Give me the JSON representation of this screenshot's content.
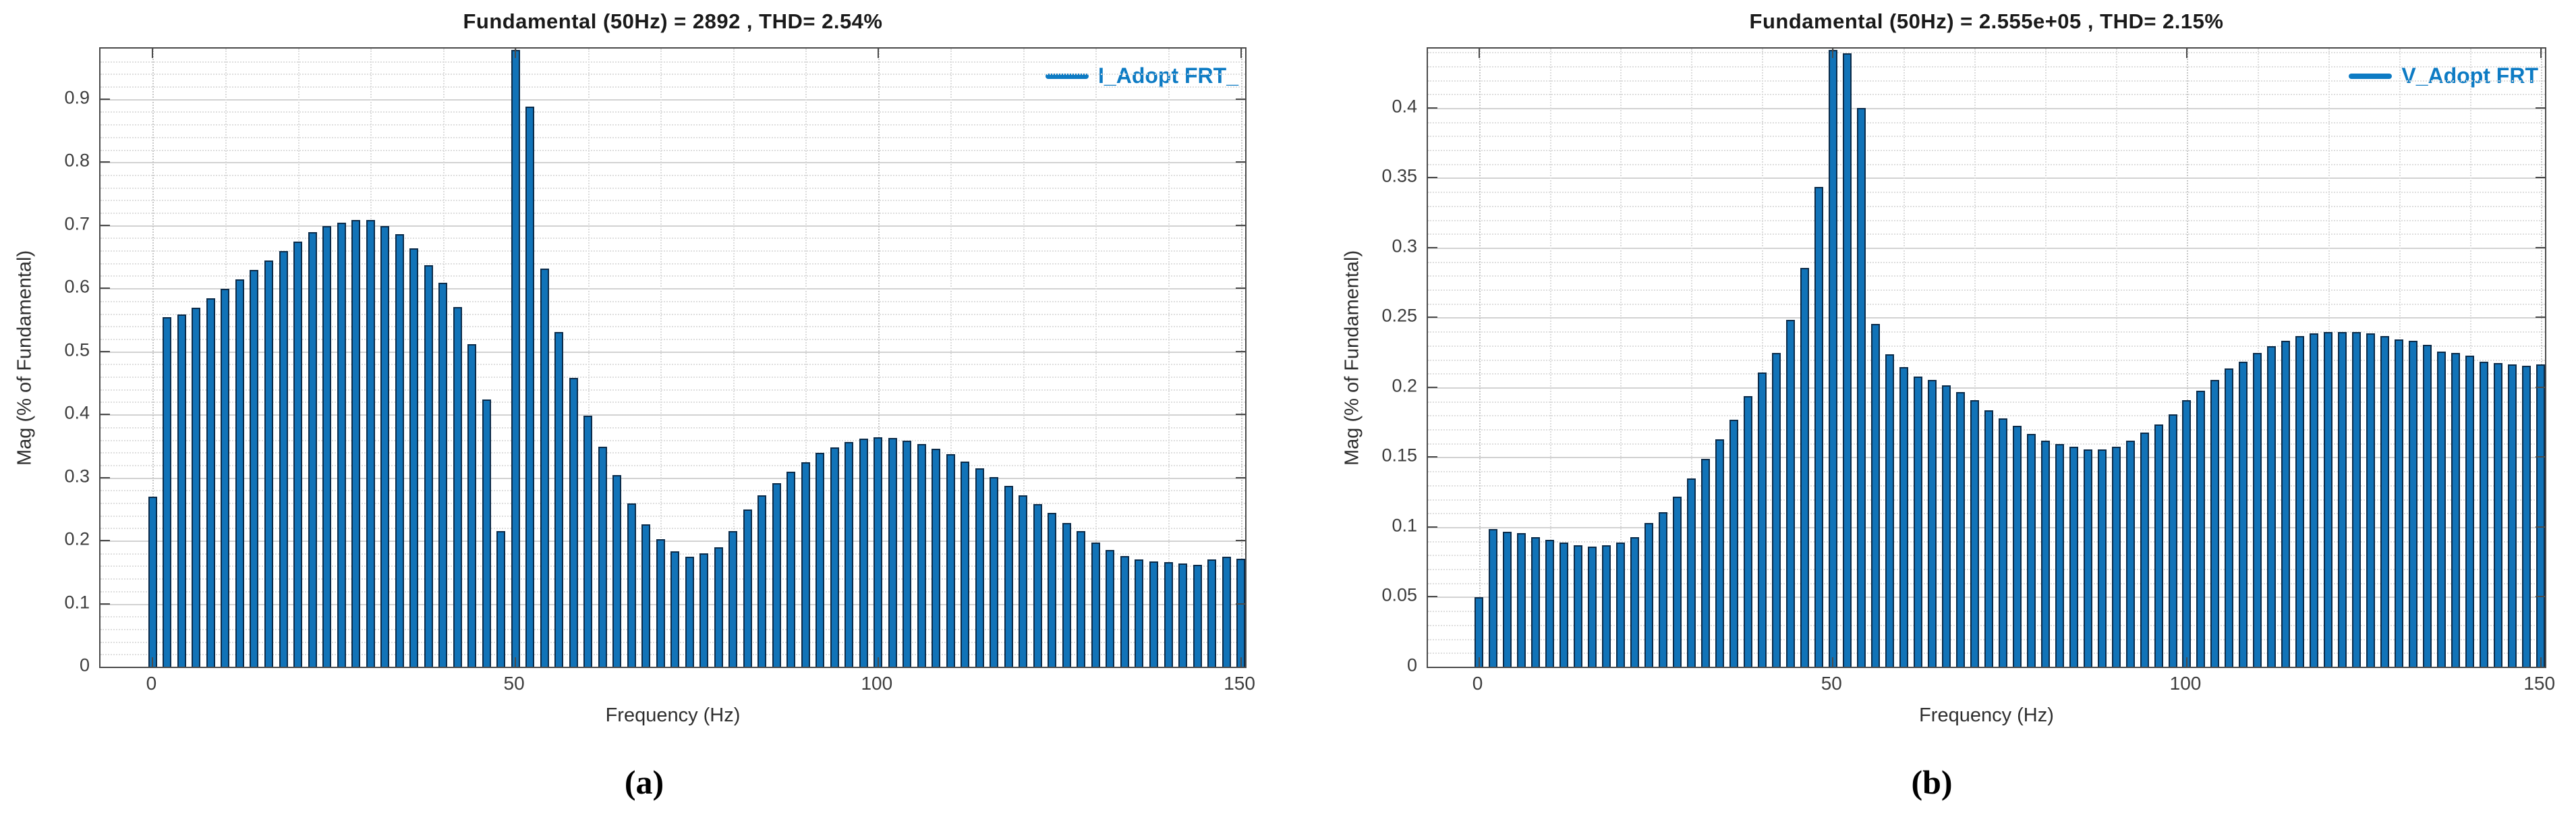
{
  "colors": {
    "bar_fill": "#1173b8",
    "bar_edge": "#0b2b49",
    "accent_blue": "#0d7bc4",
    "grid_major": "#d2d2d2",
    "grid_minor": "#dedede",
    "axis_border": "#4a4a4a",
    "text": "#262626",
    "background": "#ffffff"
  },
  "panels": [
    {
      "panel_label": "(a)",
      "title": "Fundamental (50Hz) = 2892 , THD= 2.54%",
      "legend_label": "I_Adopt FRT_",
      "ylabel": "Mag (% of Fundamental)",
      "xlabel": "Frequency (Hz)",
      "chart_data": {
        "type": "bar",
        "series_name": "I_Adopt FRT_",
        "x_start_hz": 0,
        "x_step_hz": 2,
        "x_unit": "Hz",
        "values": [
          0.27,
          0.555,
          0.56,
          0.57,
          0.585,
          0.6,
          0.615,
          0.63,
          0.645,
          0.66,
          0.675,
          0.69,
          0.7,
          0.705,
          0.71,
          0.71,
          0.7,
          0.687,
          0.665,
          0.638,
          0.61,
          0.571,
          0.512,
          0.425,
          0.215,
          0.98,
          0.89,
          0.633,
          0.532,
          0.459,
          0.399,
          0.35,
          0.304,
          0.26,
          0.226,
          0.203,
          0.183,
          0.175,
          0.18,
          0.19,
          0.215,
          0.25,
          0.272,
          0.292,
          0.31,
          0.325,
          0.34,
          0.349,
          0.357,
          0.362,
          0.365,
          0.363,
          0.359,
          0.354,
          0.346,
          0.338,
          0.326,
          0.315,
          0.301,
          0.287,
          0.272,
          0.258,
          0.244,
          0.228,
          0.215,
          0.197,
          0.185,
          0.176,
          0.17,
          0.167,
          0.166,
          0.164,
          0.162,
          0.17,
          0.175,
          0.172
        ],
        "clipped_at_top_hz": [
          50
        ],
        "xlim": [
          -7.2,
          150.6
        ],
        "ylim": [
          0,
          0.98
        ],
        "yticks": [
          0,
          0.1,
          0.2,
          0.3,
          0.4,
          0.5,
          0.6,
          0.7,
          0.8,
          0.9
        ],
        "xticks": [
          0,
          50,
          100,
          150
        ],
        "y_minor_step": 0.02,
        "x_minor_step": 10,
        "grid": "on",
        "legend_position": "northeast-inside"
      }
    },
    {
      "panel_label": "(b)",
      "title": "Fundamental (50Hz) = 2.555e+05 , THD= 2.15%",
      "legend_label": "V_Adopt FRT",
      "ylabel": "Mag (% of Fundamental)",
      "xlabel": "Frequency (Hz)",
      "chart_data": {
        "type": "bar",
        "series_name": "V_Adopt FRT",
        "x_start_hz": 0,
        "x_step_hz": 2,
        "x_unit": "Hz",
        "values": [
          0.05,
          0.099,
          0.097,
          0.096,
          0.093,
          0.091,
          0.089,
          0.087,
          0.086,
          0.087,
          0.089,
          0.093,
          0.103,
          0.111,
          0.122,
          0.135,
          0.149,
          0.163,
          0.177,
          0.194,
          0.211,
          0.225,
          0.249,
          0.286,
          0.344,
          0.4425,
          0.44,
          0.401,
          0.246,
          0.224,
          0.215,
          0.208,
          0.206,
          0.202,
          0.197,
          0.191,
          0.184,
          0.178,
          0.173,
          0.167,
          0.162,
          0.16,
          0.158,
          0.156,
          0.156,
          0.158,
          0.162,
          0.168,
          0.174,
          0.181,
          0.191,
          0.198,
          0.206,
          0.214,
          0.219,
          0.225,
          0.23,
          0.234,
          0.237,
          0.239,
          0.24,
          0.24,
          0.24,
          0.239,
          0.237,
          0.235,
          0.234,
          0.231,
          0.226,
          0.225,
          0.223,
          0.219,
          0.218,
          0.217,
          0.216,
          0.217
        ],
        "clipped_at_top_hz": [
          50
        ],
        "xlim": [
          -7.2,
          150.6
        ],
        "ylim": [
          0,
          0.4425
        ],
        "yticks": [
          0,
          0.05,
          0.1,
          0.15,
          0.2,
          0.25,
          0.3,
          0.35,
          0.4
        ],
        "xticks": [
          0,
          50,
          100,
          150
        ],
        "y_minor_step": 0.01,
        "x_minor_step": 10,
        "grid": "on",
        "legend_position": "northeast-inside"
      }
    }
  ]
}
